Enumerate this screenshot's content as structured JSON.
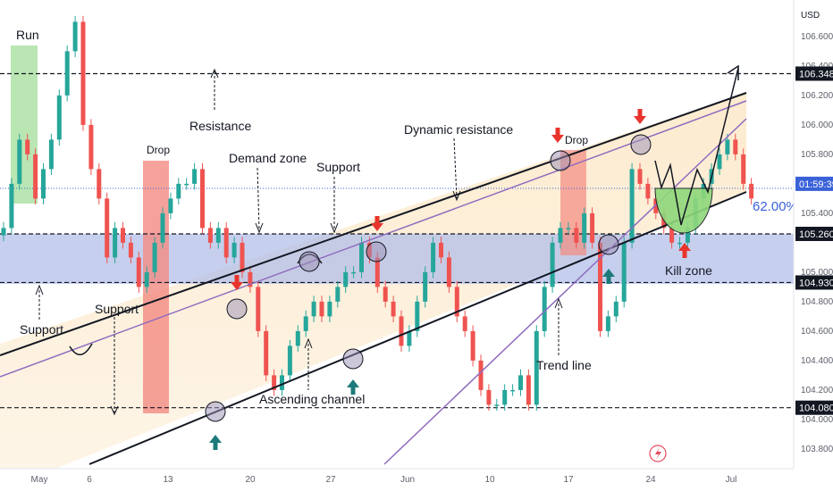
{
  "chart_data": {
    "type": "candlestick",
    "currency_label": "USD",
    "y_range": [
      103.7,
      106.75
    ],
    "y_ticks": [
      103.8,
      104.0,
      104.2,
      104.4,
      104.6,
      104.8,
      105.0,
      105.4,
      105.6,
      105.8,
      106.0,
      106.2,
      106.4,
      106.6
    ],
    "x_ticks": [
      "May",
      "6",
      "13",
      "20",
      "27",
      "Jun",
      "10",
      "17",
      "24",
      "Jul"
    ],
    "price_tags": [
      {
        "value": 106.348,
        "label": "106.348",
        "style": "dark"
      },
      {
        "value": 105.26,
        "label": "105.260",
        "style": "dark"
      },
      {
        "value": 104.93,
        "label": "104.930",
        "style": "dark"
      },
      {
        "value": 104.08,
        "label": "104.080",
        "style": "dark"
      },
      {
        "value": 105.6,
        "label": "01:59:39",
        "style": "blue"
      }
    ],
    "fib_label": "62.00%",
    "horizontal_levels": [
      {
        "name": "resistance",
        "value": 106.348
      },
      {
        "name": "demand-top",
        "value": 105.26
      },
      {
        "name": "demand-bottom",
        "value": 104.93
      },
      {
        "name": "support",
        "value": 104.08
      }
    ],
    "current_price": 105.6,
    "annotations": [
      "Run",
      "Drop",
      "Resistance",
      "Demand zone",
      "Support",
      "Dynamic resistance",
      "Drop",
      "Support",
      "Support",
      "Ascending channel",
      "Trend line",
      "Kill zone"
    ],
    "candles_close": [
      105.3,
      105.6,
      105.9,
      105.8,
      105.5,
      105.7,
      105.9,
      106.2,
      106.5,
      106.7,
      106.0,
      105.7,
      105.5,
      105.1,
      105.3,
      105.2,
      105.1,
      104.9,
      105.0,
      105.2,
      105.4,
      105.5,
      105.6,
      105.6,
      105.7,
      105.3,
      105.2,
      105.3,
      105.1,
      105.2,
      105.0,
      104.9,
      104.6,
      104.3,
      104.2,
      104.3,
      104.5,
      104.6,
      104.7,
      104.8,
      104.7,
      104.8,
      104.9,
      105.0,
      105.0,
      105.2,
      105.1,
      104.9,
      104.8,
      104.7,
      104.5,
      104.6,
      104.8,
      105.0,
      105.2,
      105.1,
      104.9,
      104.7,
      104.6,
      104.4,
      104.2,
      104.1,
      104.1,
      104.2,
      104.2,
      104.3,
      104.1,
      104.6,
      104.9,
      105.2,
      105.3,
      105.3,
      105.2,
      105.4,
      105.2,
      104.6,
      104.7,
      104.8,
      105.2,
      105.7,
      105.6,
      105.5,
      105.4,
      105.3,
      105.2,
      105.2,
      105.3,
      105.5,
      105.6,
      105.7,
      105.8,
      105.9,
      105.8,
      105.6,
      105.5
    ]
  }
}
